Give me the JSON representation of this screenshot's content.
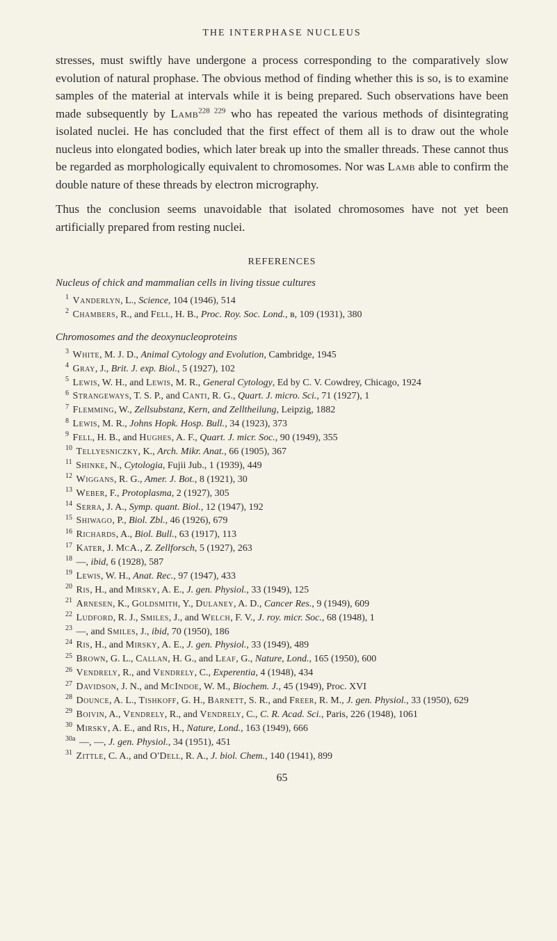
{
  "header": "THE INTERPHASE NUCLEUS",
  "paragraph1": "stresses, must swiftly have undergone a process corresponding to the comparatively slow evolution of natural prophase. The obvious method of finding whether this is so, is to examine samples of the material at intervals while it is being prepared. Such observations have been made subsequently by ",
  "author1": "Lamb",
  "sup1": "228 229",
  "paragraph1b": " who has repeated the various methods of disintegrating isolated nuclei. He has concluded that the first effect of them all is to draw out the whole nucleus into elongated bodies, which later break up into the smaller threads. These cannot thus be regarded as morphologically equivalent to chromosomes. Nor was ",
  "author1b": "Lamb",
  "paragraph1c": " able to confirm the double nature of these threads by electron micrography.",
  "paragraph2": "Thus the conclusion seems unavoidable that isolated chromosomes have not yet been artificially prepared from resting nuclei.",
  "references_title": "REFERENCES",
  "section1_title": "Nucleus of chick and mammalian cells in living tissue cultures",
  "section2_title": "Chromosomes and the deoxynucleoproteins",
  "refs_section1": [
    {
      "num": "1",
      "authors": "Vanderlyn, L.",
      "rest": ", <i>Science</i>, 104 (1946), 514"
    },
    {
      "num": "2",
      "authors": "Chambers, R., and Fell, H. B.",
      "rest": ", <i>Proc. Roy. Soc. Lond.</i>, ʙ, 109 (1931), 380"
    }
  ],
  "refs_section2": [
    {
      "num": "3",
      "authors": "White, M. J. D.",
      "rest": ", <i>Animal Cytology and Evolution</i>, Cambridge, 1945"
    },
    {
      "num": "4",
      "authors": "Gray, J.",
      "rest": ", <i>Brit. J. exp. Biol.</i>, 5 (1927), 102"
    },
    {
      "num": "5",
      "authors": "Lewis, W. H., and Lewis, M. R.",
      "rest": ", <i>General Cytology</i>, Ed by C. V. Cowdrey, Chicago, 1924"
    },
    {
      "num": "6",
      "authors": "Strangeways, T. S. P., and Canti, R. G.",
      "rest": ", <i>Quart. J. micro. Sci.</i>, 71 (1927), 1"
    },
    {
      "num": "7",
      "authors": "Flemming, W.",
      "rest": ", <i>Zellsubstanz, Kern, and Zelltheilung</i>, Leipzig, 1882"
    },
    {
      "num": "8",
      "authors": "Lewis, M. R.",
      "rest": ", <i>Johns Hopk. Hosp. Bull.</i>, 34 (1923), 373"
    },
    {
      "num": "9",
      "authors": "Fell, H. B., and Hughes, A. F.",
      "rest": ", <i>Quart. J. micr. Soc.</i>, 90 (1949), 355"
    },
    {
      "num": "10",
      "authors": "Tellyesniczky, K.",
      "rest": ", <i>Arch. Mikr. Anat.</i>, 66 (1905), 367"
    },
    {
      "num": "11",
      "authors": "Shinke, N.",
      "rest": ", <i>Cytologia</i>, Fujii Jub., 1 (1939), 449"
    },
    {
      "num": "12",
      "authors": "Wiggans, R. G.",
      "rest": ", <i>Amer. J. Bot.</i>, 8 (1921), 30"
    },
    {
      "num": "13",
      "authors": "Weber, F.",
      "rest": ", <i>Protoplasma</i>, 2 (1927), 305"
    },
    {
      "num": "14",
      "authors": "Serra, J. A.",
      "rest": ", <i>Symp. quant. Biol.</i>, 12 (1947), 192"
    },
    {
      "num": "15",
      "authors": "Shiwago, P.",
      "rest": ", <i>Biol. Zbl.</i>, 46 (1926), 679"
    },
    {
      "num": "16",
      "authors": "Richards, A.",
      "rest": ", <i>Biol. Bull.</i>, 63 (1917), 113"
    },
    {
      "num": "17",
      "authors": "Kater, J. McA.",
      "rest": ", <i>Z. Zellforsch</i>, 5 (1927), 263"
    },
    {
      "num": "18",
      "authors": "—",
      "rest": ", <i>ibid</i>, 6 (1928), 587"
    },
    {
      "num": "19",
      "authors": "Lewis, W. H.",
      "rest": ", <i>Anat. Rec.</i>, 97 (1947), 433"
    },
    {
      "num": "20",
      "authors": "Ris, H., and Mirsky, A. E.",
      "rest": ", <i>J. gen. Physiol.</i>, 33 (1949), 125"
    },
    {
      "num": "21",
      "authors": "Arnesen, K., Goldsmith, Y., Dulaney, A. D.",
      "rest": ", <i>Cancer Res.</i>, 9 (1949), 609"
    },
    {
      "num": "22",
      "authors": "Ludford, R. J., Smiles, J., and Welch, F. V.",
      "rest": ", <i>J. roy. micr. Soc.</i>, 68 (1948), 1"
    },
    {
      "num": "23",
      "authors": "—, and Smiles, J.",
      "rest": ", <i>ibid</i>, 70 (1950), 186"
    },
    {
      "num": "24",
      "authors": "Ris, H., and Mirsky, A. E.",
      "rest": ", <i>J. gen. Physiol.</i>, 33 (1949), 489"
    },
    {
      "num": "25",
      "authors": "Brown, G. L., Callan, H. G., and Leaf, G.",
      "rest": ", <i>Nature, Lond.</i>, 165 (1950), 600"
    },
    {
      "num": "26",
      "authors": "Vendrely, R., and Vendrely, C.",
      "rest": ", <i>Experentia</i>, 4 (1948), 434"
    },
    {
      "num": "27",
      "authors": "Davidson, J. N., and McIndoe, W. M.",
      "rest": ", <i>Biochem. J.</i>, 45 (1949), Proc. XVI"
    },
    {
      "num": "28",
      "authors": "Dounce, A. L., Tishkoff, G. H., Barnett, S. R., and Freer, R. M.",
      "rest": ", <i>J. gen. Physiol.</i>, 33 (1950), 629"
    },
    {
      "num": "29",
      "authors": "Boivin, A., Vendrely, R., and Vendrely, C.",
      "rest": ", <i>C. R. Acad. Sci.</i>, Paris, 226 (1948), 1061"
    },
    {
      "num": "30",
      "authors": "Mirsky, A. E., and Ris, H.",
      "rest": ", <i>Nature, Lond.</i>, 163 (1949), 666"
    },
    {
      "num": "30a",
      "authors": "—, —",
      "rest": ", <i>J. gen. Physiol.</i>, 34 (1951), 451"
    },
    {
      "num": "31",
      "authors": "Zittle, C. A., and O'Dell, R. A.",
      "rest": ", <i>J. biol. Chem.</i>, 140 (1941), 899"
    }
  ],
  "page_number": "65"
}
